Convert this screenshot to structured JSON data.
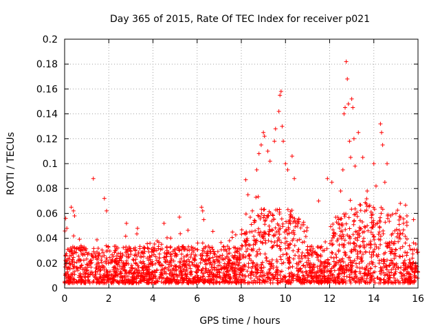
{
  "chart_data": {
    "type": "scatter",
    "title": "Day 365 of 2015, Rate Of TEC Index for receiver p021",
    "xlabel": "GPS time / hours",
    "ylabel": "ROTI / TECUs",
    "xlim": [
      0,
      16
    ],
    "ylim": [
      0,
      0.2
    ],
    "x_ticks": [
      0,
      2,
      4,
      6,
      8,
      10,
      12,
      14,
      16
    ],
    "y_ticks": [
      0,
      0.02,
      0.04,
      0.06,
      0.08,
      0.1,
      0.12,
      0.14,
      0.16,
      0.18,
      0.2
    ],
    "x_tick_labels": [
      "0",
      "2",
      "4",
      "6",
      "8",
      "10",
      "12",
      "14",
      "16"
    ],
    "y_tick_labels": [
      "0",
      "0.02",
      "0.04",
      "0.06",
      "0.08",
      "0.1",
      "0.12",
      "0.14",
      "0.16",
      "0.18",
      "0.2"
    ],
    "grid": true,
    "marker": "+",
    "marker_color": "#ff0000",
    "series": [
      {
        "name": "p021",
        "description": "dense per-satellite ROTI samples; baseline ~0.005-0.03, enhanced activity 8-11 h and 12-15 h",
        "points": [
          [
            0.05,
            0.056
          ],
          [
            0.1,
            0.048
          ],
          [
            0.3,
            0.065
          ],
          [
            0.4,
            0.062
          ],
          [
            0.45,
            0.058
          ],
          [
            1.3,
            0.088
          ],
          [
            1.8,
            0.072
          ],
          [
            1.9,
            0.062
          ],
          [
            2.8,
            0.052
          ],
          [
            3.3,
            0.048
          ],
          [
            4.5,
            0.052
          ],
          [
            5.2,
            0.057
          ],
          [
            6.2,
            0.065
          ],
          [
            6.25,
            0.062
          ],
          [
            6.3,
            0.055
          ],
          [
            7.6,
            0.045
          ],
          [
            8.2,
            0.087
          ],
          [
            8.3,
            0.075
          ],
          [
            8.5,
            0.062
          ],
          [
            8.7,
            0.095
          ],
          [
            8.8,
            0.108
          ],
          [
            8.9,
            0.115
          ],
          [
            9.0,
            0.125
          ],
          [
            9.05,
            0.122
          ],
          [
            9.2,
            0.11
          ],
          [
            9.3,
            0.102
          ],
          [
            9.5,
            0.118
          ],
          [
            9.55,
            0.128
          ],
          [
            9.7,
            0.142
          ],
          [
            9.75,
            0.155
          ],
          [
            9.8,
            0.158
          ],
          [
            9.85,
            0.13
          ],
          [
            9.9,
            0.118
          ],
          [
            10.0,
            0.1
          ],
          [
            10.1,
            0.095
          ],
          [
            10.3,
            0.106
          ],
          [
            10.4,
            0.088
          ],
          [
            10.6,
            0.055
          ],
          [
            11.5,
            0.07
          ],
          [
            11.9,
            0.088
          ],
          [
            12.1,
            0.085
          ],
          [
            12.5,
            0.078
          ],
          [
            12.6,
            0.095
          ],
          [
            12.65,
            0.14
          ],
          [
            12.7,
            0.145
          ],
          [
            12.75,
            0.182
          ],
          [
            12.8,
            0.168
          ],
          [
            12.85,
            0.148
          ],
          [
            12.9,
            0.118
          ],
          [
            12.95,
            0.105
          ],
          [
            13.0,
            0.152
          ],
          [
            13.05,
            0.145
          ],
          [
            13.1,
            0.12
          ],
          [
            13.15,
            0.098
          ],
          [
            13.3,
            0.125
          ],
          [
            13.5,
            0.105
          ],
          [
            13.7,
            0.078
          ],
          [
            14.0,
            0.1
          ],
          [
            14.1,
            0.082
          ],
          [
            14.3,
            0.132
          ],
          [
            14.35,
            0.125
          ],
          [
            14.4,
            0.115
          ],
          [
            14.5,
            0.085
          ],
          [
            14.6,
            0.1
          ],
          [
            15.0,
            0.06
          ],
          [
            15.2,
            0.068
          ],
          [
            15.5,
            0.058
          ],
          [
            15.8,
            0.055
          ]
        ]
      }
    ]
  }
}
